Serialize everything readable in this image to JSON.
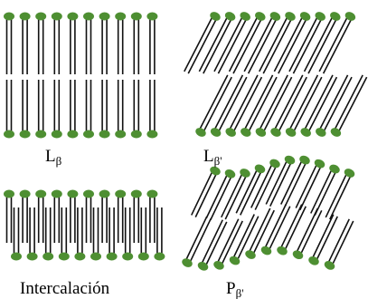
{
  "panels": [
    {
      "label": {
        "base": "L",
        "sub": "β"
      }
    },
    {
      "label": {
        "base": "L",
        "sub": "β'"
      }
    },
    {
      "label": {
        "base": "Intercalación"
      }
    },
    {
      "label": {
        "base": "P",
        "sub": "β'"
      }
    }
  ]
}
